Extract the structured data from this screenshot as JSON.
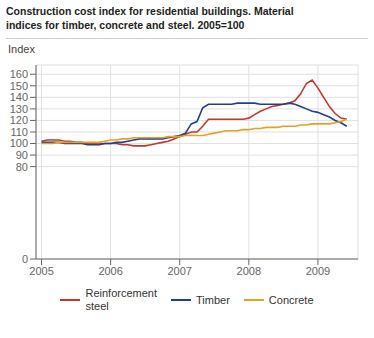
{
  "chart_data": {
    "type": "line",
    "title": "Construction cost index for residential buildings. Material\nindices for timber, concrete and steel. 2005=100",
    "y_label": "Index",
    "x": [
      2005.0,
      2005.083,
      2005.167,
      2005.25,
      2005.333,
      2005.417,
      2005.5,
      2005.583,
      2005.667,
      2005.75,
      2005.833,
      2005.917,
      2006.0,
      2006.083,
      2006.167,
      2006.25,
      2006.333,
      2006.417,
      2006.5,
      2006.583,
      2006.667,
      2006.75,
      2006.833,
      2006.917,
      2007.0,
      2007.083,
      2007.167,
      2007.25,
      2007.333,
      2007.417,
      2007.5,
      2007.583,
      2007.667,
      2007.75,
      2007.833,
      2007.917,
      2008.0,
      2008.083,
      2008.167,
      2008.25,
      2008.333,
      2008.417,
      2008.5,
      2008.583,
      2008.667,
      2008.75,
      2008.833,
      2008.917,
      2009.0,
      2009.083,
      2009.167,
      2009.25,
      2009.333,
      2009.417
    ],
    "series": [
      {
        "name": "Reinforcement\nsteel",
        "color": "#c0392b",
        "values": [
          102,
          103,
          103,
          103,
          102,
          102,
          101,
          101,
          100,
          100,
          100,
          100,
          100,
          100,
          99,
          99,
          98,
          98,
          98,
          99,
          100,
          101,
          102,
          104,
          106,
          108,
          110,
          110,
          115,
          121,
          121,
          121,
          121,
          121,
          121,
          121,
          122,
          125,
          128,
          130,
          132,
          133,
          134,
          135,
          137,
          143,
          152,
          155,
          148,
          140,
          132,
          126,
          122,
          121
        ]
      },
      {
        "name": "Timber",
        "color": "#1f3f8f",
        "values": [
          101,
          101,
          101,
          101,
          100,
          100,
          100,
          100,
          99,
          99,
          99,
          100,
          100,
          101,
          101,
          102,
          103,
          104,
          104,
          104,
          104,
          104,
          105,
          106,
          107,
          109,
          117,
          119,
          131,
          134,
          134,
          134,
          134,
          134,
          135,
          135,
          135,
          135,
          134,
          134,
          134,
          134,
          134,
          135,
          134,
          132,
          130,
          128,
          127,
          125,
          123,
          120,
          118,
          115
        ]
      },
      {
        "name": "Concrete",
        "color": "#e8a020",
        "values": [
          100,
          100,
          100,
          101,
          101,
          101,
          101,
          101,
          101,
          101,
          101,
          102,
          103,
          103,
          104,
          104,
          105,
          105,
          105,
          105,
          105,
          105,
          106,
          106,
          106,
          107,
          107,
          107,
          107,
          108,
          109,
          110,
          111,
          111,
          111,
          112,
          112,
          113,
          113,
          114,
          114,
          114,
          115,
          115,
          115,
          116,
          116,
          117,
          117,
          117,
          117,
          118,
          119,
          121
        ]
      }
    ],
    "xlim": [
      2004.92,
      2009.58
    ],
    "xticks": [
      2005,
      2006,
      2007,
      2008,
      2009
    ],
    "ylim": [
      0,
      168
    ],
    "yticks": [
      0,
      80,
      90,
      100,
      110,
      120,
      130,
      140,
      150,
      160
    ],
    "grid": true
  }
}
